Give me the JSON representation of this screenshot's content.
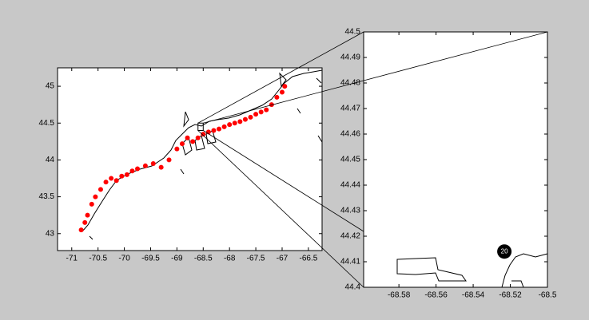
{
  "chart_data": [
    {
      "type": "scatter",
      "xlim": [
        -71.27,
        -66.24
      ],
      "ylim": [
        42.77,
        45.25
      ],
      "xticks": [
        -71,
        -70.5,
        -70,
        -69.5,
        -69,
        -68.5,
        -68,
        -67.5,
        -67,
        -66.5
      ],
      "yticks": [
        43,
        43.5,
        44,
        44.5,
        45
      ],
      "series": [
        {
          "color": "#ff0000",
          "x": [
            -70.82,
            -70.75,
            -70.7,
            -70.62,
            -70.55,
            -70.45,
            -70.35,
            -70.25,
            -70.15,
            -70.05,
            -69.95,
            -69.85,
            -69.75,
            -69.6,
            -69.45,
            -69.3,
            -69.15,
            -69.0,
            -68.9,
            -68.8,
            -68.7,
            -68.6,
            -68.5,
            -68.4,
            -68.3,
            -68.2,
            -68.1,
            -68.0,
            -67.9,
            -67.8,
            -67.7,
            -67.6,
            -67.5,
            -67.4,
            -67.3,
            -67.2,
            -67.1,
            -67.0,
            -66.95
          ],
          "values": [
            43.05,
            43.15,
            43.25,
            43.4,
            43.5,
            43.6,
            43.7,
            43.75,
            43.72,
            43.78,
            43.8,
            43.85,
            43.88,
            43.92,
            43.95,
            43.9,
            44.0,
            44.15,
            44.22,
            44.3,
            44.25,
            44.3,
            44.35,
            44.38,
            44.4,
            44.42,
            44.45,
            44.48,
            44.5,
            44.52,
            44.55,
            44.58,
            44.62,
            44.65,
            44.68,
            44.75,
            44.85,
            44.92,
            45.0
          ]
        }
      ]
    },
    {
      "type": "scatter",
      "xlim": [
        -68.599,
        -68.5
      ],
      "ylim": [
        44.4,
        44.5
      ],
      "xticks": [
        -68.58,
        -68.56,
        -68.54,
        -68.52,
        -68.5
      ],
      "yticks": [
        44.4,
        44.41,
        44.42,
        44.43,
        44.44,
        44.45,
        44.46,
        44.47,
        44.48,
        44.49,
        44.5
      ],
      "series": [
        {
          "color": "#000000",
          "x": [
            -68.5232
          ],
          "values": [
            44.414
          ],
          "point_labels": [
            "20"
          ]
        }
      ]
    }
  ]
}
